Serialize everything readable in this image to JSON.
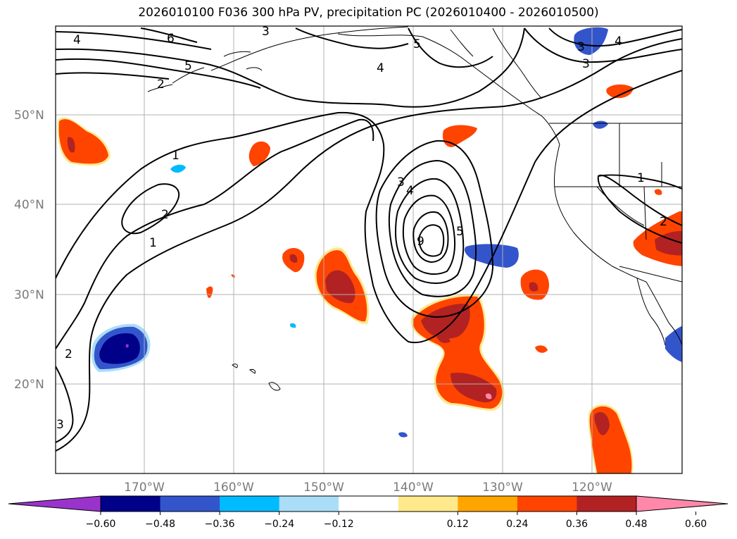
{
  "title": "2026010100 F036 300 hPa PV, precipitation PC (2026010400 - 2026010500)",
  "lat_labels": [
    "50°N",
    "40°N",
    "30°N",
    "20°N"
  ],
  "lon_labels": [
    "170°W",
    "160°W",
    "150°W",
    "140°W",
    "130°W",
    "120°W"
  ],
  "colorbar": {
    "colors": [
      "#9933cc",
      "#000088",
      "#3355cc",
      "#00bbff",
      "#aaddf8",
      "#ffffff",
      "#ffe98a",
      "#ffa500",
      "#ff4400",
      "#b22222",
      "#ff88aa"
    ],
    "ticks": [
      "−0.60",
      "−0.48",
      "−0.36",
      "−0.24",
      "−0.12",
      "0.12",
      "0.24",
      "0.36",
      "0.48",
      "0.60"
    ]
  },
  "contour_labels": [
    "4",
    "6",
    "5",
    "3",
    "2",
    "1",
    "2",
    "1",
    "5",
    "4",
    "3",
    "4",
    "3",
    "9",
    "5",
    "4",
    "3",
    "1",
    "2",
    "2",
    "3"
  ]
}
